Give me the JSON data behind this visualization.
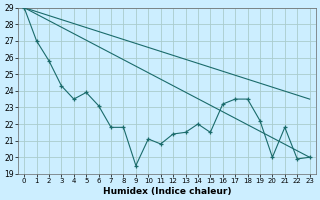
{
  "xlabel": "Humidex (Indice chaleur)",
  "bg_color": "#cceeff",
  "grid_color": "#aacccc",
  "line_color": "#1a6b6b",
  "xlim": [
    -0.5,
    23.5
  ],
  "ylim": [
    19,
    29
  ],
  "xticks": [
    0,
    1,
    2,
    3,
    4,
    5,
    6,
    7,
    8,
    9,
    10,
    11,
    12,
    13,
    14,
    15,
    16,
    17,
    18,
    19,
    20,
    21,
    22,
    23
  ],
  "yticks": [
    19,
    20,
    21,
    22,
    23,
    24,
    25,
    26,
    27,
    28,
    29
  ],
  "line1_x": [
    0,
    1,
    2,
    3,
    4,
    5,
    6,
    7,
    8,
    9,
    10,
    11,
    12,
    13,
    14,
    15,
    16,
    17,
    18,
    19,
    20,
    21,
    22,
    23
  ],
  "line1_y": [
    29,
    27,
    25.8,
    24.3,
    23.5,
    23.9,
    23.1,
    21.8,
    21.8,
    19.5,
    21.1,
    20.8,
    21.4,
    21.5,
    22.0,
    21.5,
    23.2,
    23.5,
    23.5,
    22.2,
    20.0,
    21.8,
    19.9,
    20.0
  ],
  "line2_x": [
    0,
    23
  ],
  "line2_y": [
    29,
    23.5
  ],
  "line3_x": [
    0,
    23
  ],
  "line3_y": [
    29,
    20.0
  ]
}
